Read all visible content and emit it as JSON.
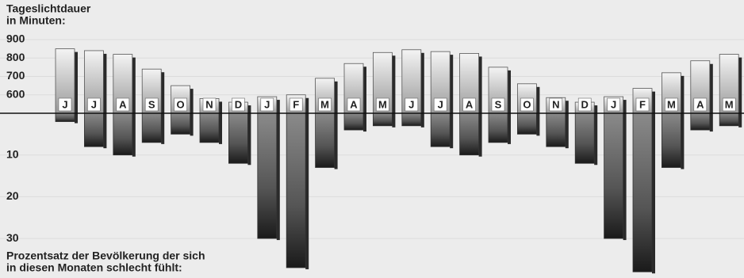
{
  "chart_data": {
    "type": "bar",
    "ylabel": [
      "Tageslichtdauer",
      "in Minuten:"
    ],
    "y2label": [
      "Prozentsatz der Bevölkerung der sich",
      "in diesen Monaten schlecht fühlt:"
    ],
    "categories": [
      "J",
      "J",
      "A",
      "S",
      "O",
      "N",
      "D",
      "J",
      "F",
      "M",
      "A",
      "M",
      "J",
      "J",
      "A",
      "S",
      "O",
      "N",
      "D",
      "J",
      "F",
      "M",
      "A",
      "M"
    ],
    "series": [
      {
        "name": "Tageslichtdauer",
        "color": "#c8c8c8",
        "axis": "y",
        "values": [
          850,
          840,
          820,
          740,
          650,
          580,
          560,
          590,
          600,
          690,
          770,
          830,
          845,
          835,
          825,
          750,
          660,
          585,
          560,
          590,
          635,
          720,
          785,
          820
        ]
      },
      {
        "name": "Prozentsatz",
        "color": "#555555",
        "axis": "y2",
        "values": [
          2,
          8,
          10,
          7,
          5,
          7,
          12,
          30,
          37,
          13,
          4,
          3,
          3,
          8,
          10,
          7,
          5,
          8,
          12,
          30,
          38,
          13,
          4,
          3
        ]
      }
    ],
    "ylim": [
      500,
      900
    ],
    "yticks": [
      600,
      700,
      800,
      900
    ],
    "y2lim": [
      0,
      39
    ],
    "y2ticks": [
      10,
      20,
      30
    ],
    "grid": true
  }
}
